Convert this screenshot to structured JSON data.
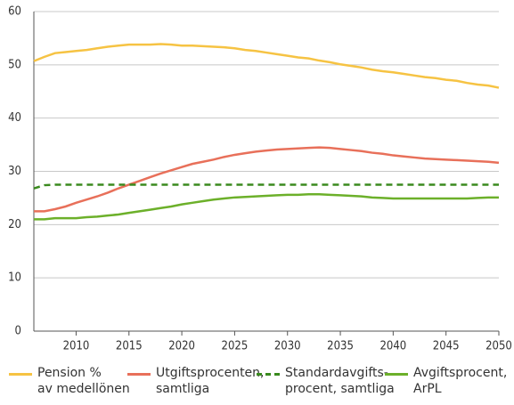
{
  "chart_data": {
    "type": "line",
    "x": [
      2006,
      2007,
      2008,
      2009,
      2010,
      2011,
      2012,
      2013,
      2014,
      2015,
      2016,
      2017,
      2018,
      2019,
      2020,
      2021,
      2022,
      2023,
      2024,
      2025,
      2026,
      2027,
      2028,
      2029,
      2030,
      2031,
      2032,
      2033,
      2034,
      2035,
      2036,
      2037,
      2038,
      2039,
      2040,
      2041,
      2042,
      2043,
      2044,
      2045,
      2046,
      2047,
      2048,
      2049,
      2050
    ],
    "series": [
      {
        "name": "Pension %\nav medellönen",
        "color": "#f6c343",
        "dashed": false,
        "values": [
          50.7,
          51.5,
          52.2,
          52.4,
          52.6,
          52.8,
          53.1,
          53.4,
          53.6,
          53.8,
          53.8,
          53.8,
          53.9,
          53.8,
          53.6,
          53.6,
          53.5,
          53.4,
          53.3,
          53.1,
          52.8,
          52.6,
          52.3,
          52.0,
          51.7,
          51.4,
          51.2,
          50.8,
          50.5,
          50.1,
          49.8,
          49.5,
          49.1,
          48.8,
          48.6,
          48.3,
          48.0,
          47.7,
          47.5,
          47.2,
          47.0,
          46.6,
          46.3,
          46.1,
          45.7
        ]
      },
      {
        "name": "Utgiftsprocenten,\nsamtliga",
        "color": "#e8705a",
        "dashed": false,
        "values": [
          22.5,
          22.5,
          22.9,
          23.4,
          24.1,
          24.7,
          25.3,
          26.0,
          26.8,
          27.5,
          28.2,
          28.9,
          29.6,
          30.2,
          30.8,
          31.4,
          31.8,
          32.2,
          32.7,
          33.1,
          33.4,
          33.7,
          33.9,
          34.1,
          34.2,
          34.3,
          34.4,
          34.5,
          34.4,
          34.2,
          34.0,
          33.8,
          33.5,
          33.3,
          33.0,
          32.8,
          32.6,
          32.4,
          32.3,
          32.2,
          32.1,
          32.0,
          31.9,
          31.8,
          31.6
        ]
      },
      {
        "name": "Standardavgifts-\nprocent, samtliga",
        "color": "#3a8a1e",
        "dashed": true,
        "values": [
          26.8,
          27.4,
          27.5,
          27.5,
          27.5,
          27.5,
          27.5,
          27.5,
          27.5,
          27.5,
          27.5,
          27.5,
          27.5,
          27.5,
          27.5,
          27.5,
          27.5,
          27.5,
          27.5,
          27.5,
          27.5,
          27.5,
          27.5,
          27.5,
          27.5,
          27.5,
          27.5,
          27.5,
          27.5,
          27.5,
          27.5,
          27.5,
          27.5,
          27.5,
          27.5,
          27.5,
          27.5,
          27.5,
          27.5,
          27.5,
          27.5,
          27.5,
          27.5,
          27.5,
          27.5
        ]
      },
      {
        "name": "Avgiftsprocent,\nArPL",
        "color": "#6cb02a",
        "dashed": false,
        "values": [
          21.0,
          21.0,
          21.2,
          21.2,
          21.2,
          21.4,
          21.5,
          21.7,
          21.9,
          22.2,
          22.5,
          22.8,
          23.1,
          23.4,
          23.8,
          24.1,
          24.4,
          24.7,
          24.9,
          25.1,
          25.2,
          25.3,
          25.4,
          25.5,
          25.6,
          25.6,
          25.7,
          25.7,
          25.6,
          25.5,
          25.4,
          25.3,
          25.1,
          25.0,
          24.9,
          24.9,
          24.9,
          24.9,
          24.9,
          24.9,
          24.9,
          24.9,
          25.0,
          25.1,
          25.1
        ]
      }
    ],
    "xlim": [
      2006,
      2050
    ],
    "xticks": [
      2010,
      2015,
      2020,
      2025,
      2030,
      2035,
      2040,
      2045,
      2050
    ],
    "ylim": [
      0,
      60
    ],
    "yticks": [
      0,
      10,
      20,
      30,
      40,
      50,
      60
    ],
    "grid": true
  }
}
